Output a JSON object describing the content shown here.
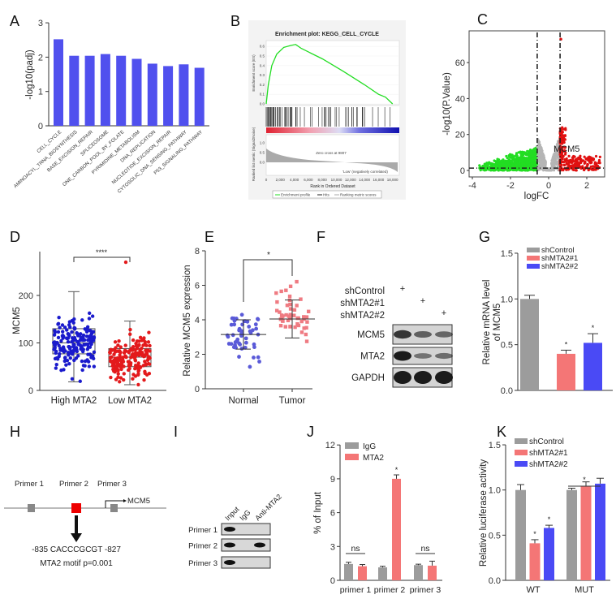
{
  "panel_labels": [
    "A",
    "B",
    "C",
    "D",
    "E",
    "F",
    "G",
    "H",
    "I",
    "J",
    "K"
  ],
  "chart_data": [
    {
      "panel": "A",
      "type": "bar",
      "ylabel": "-log10(padj)",
      "ylim": [
        0,
        3
      ],
      "yticks": [
        "0",
        "1",
        "2",
        "3"
      ],
      "categories": [
        "CELL_CYCLE",
        "AMINOACYL_TRNA_BIOSYNTHESIS",
        "BASE_EXCISION_REPAIR",
        "SPLICEOSOME",
        "ONE_CARBON_POOL_BY_FOLATE",
        "PYRIMIDINE_METABOLISM",
        "DNA_REPLICATION",
        "NUCLEOTIDE_EXCISION_REPAIR",
        "CYTOSOLIC_DNA_SENSING_PATHWAY",
        "P53_SIGNALING_PATHWAY"
      ],
      "values": [
        2.52,
        2.04,
        2.04,
        2.09,
        2.04,
        1.95,
        1.81,
        1.74,
        1.79,
        1.69
      ],
      "color": "#5050ee"
    },
    {
      "panel": "B",
      "type": "line",
      "title": "Enrichment plot: KEGG_CELL_CYCLE",
      "ylabel": "Enrichment score (ES)",
      "ylabel2": "Ranked list metric (Signal2Noise)",
      "xlabel": "Rank in Ordered Dataset",
      "yticks": [
        "0.0",
        "0.1",
        "0.2",
        "0.3",
        "0.4",
        "0.5",
        "0.6"
      ],
      "yticks2": [
        "1.0",
        "0.5",
        "0.0"
      ],
      "xticks": [
        "0",
        "2,000",
        "4,000",
        "6,000",
        "8,000",
        "10,000",
        "12,000",
        "14,000",
        "16,000",
        "18,000"
      ],
      "high_label": "'High' (positively correlated)",
      "low_label": "'Low' (negatively correlated)",
      "annotation": "Zero cross at 9807",
      "legend": [
        "Enrichment profile",
        "Hits",
        "Ranking metric scores"
      ],
      "es_curve": {
        "rank": [
          0,
          300,
          800,
          1500,
          2500,
          3500,
          4200,
          5000,
          8000,
          11000,
          14000,
          16000,
          17000,
          18000
        ],
        "es": [
          0,
          0.2,
          0.4,
          0.52,
          0.59,
          0.61,
          0.62,
          0.58,
          0.47,
          0.34,
          0.2,
          0.1,
          0.07,
          0
        ]
      },
      "curve_color": "#22dd22"
    },
    {
      "panel": "C",
      "type": "scatter",
      "xlabel": "logFC",
      "ylabel": "-log10(P.Value)",
      "xticks": [
        "-4",
        "-2",
        "0",
        "2"
      ],
      "yticks": [
        "0",
        "20",
        "40",
        "60"
      ],
      "xlim": [
        -4.2,
        2.9
      ],
      "ylim": [
        -4,
        78
      ],
      "logfc_thresholds": [
        -0.6,
        0.6
      ],
      "pvalue_threshold_line": 1.3,
      "annotation": "MCM5",
      "colors": {
        "down": "#22dd22",
        "ns": "#b5b5b5",
        "up": "#e01010"
      }
    },
    {
      "panel": "D",
      "type": "box",
      "ylabel": "MCM5",
      "yticks": [
        "0",
        "100",
        "200"
      ],
      "ylim": [
        0,
        290
      ],
      "categories": [
        "High MTA2",
        "Low MTA2"
      ],
      "boxes": [
        {
          "median": 100,
          "q1": 77,
          "q3": 130,
          "whisker_low": 18,
          "whisker_high": 208,
          "color": "#1a1acc"
        },
        {
          "median": 70,
          "q1": 50,
          "q3": 88,
          "whisker_low": 12,
          "whisker_high": 146,
          "color": "#e31a1c"
        }
      ],
      "significance": "****"
    },
    {
      "panel": "E",
      "type": "scatter",
      "ylabel": "Relative MCM5 expression",
      "yticks": [
        "0",
        "2",
        "4",
        "6",
        "8"
      ],
      "ylim": [
        0,
        8
      ],
      "categories": [
        "Normal",
        "Tumor"
      ],
      "means": [
        3.15,
        4.05
      ],
      "sd": [
        0.85,
        1.1
      ],
      "colors": [
        "#5a5ad8",
        "#ef7b82"
      ],
      "significance": "*"
    },
    {
      "panel": "G",
      "type": "bar",
      "ylabel": "Relative mRNA level",
      "ylabel2": "of MCM5",
      "yticks": [
        "0.0",
        "0.5",
        "1.0",
        "1.5"
      ],
      "ylim": [
        0,
        1.5
      ],
      "series": [
        {
          "name": "shControl",
          "value": 1.0,
          "error": 0.04,
          "color": "#9c9c9c",
          "sig": ""
        },
        {
          "name": "shMTA2#1",
          "value": 0.4,
          "error": 0.04,
          "color": "#f47676",
          "sig": "*"
        },
        {
          "name": "shMTA2#2",
          "value": 0.52,
          "error": 0.1,
          "color": "#4a4af5",
          "sig": "*"
        }
      ]
    },
    {
      "panel": "J",
      "type": "bar",
      "ylabel": "% of Input",
      "yticks": [
        "0",
        "3",
        "6",
        "9",
        "12"
      ],
      "ylim": [
        0,
        12
      ],
      "categories": [
        "primer 1",
        "primer 2",
        "primer 3"
      ],
      "series": [
        {
          "name": "IgG",
          "values": [
            1.45,
            1.15,
            1.35
          ],
          "errors": [
            0.15,
            0.1,
            0.08
          ],
          "color": "#9c9c9c"
        },
        {
          "name": "MTA2",
          "values": [
            1.25,
            9.0,
            1.3
          ],
          "errors": [
            0.15,
            0.35,
            0.4
          ],
          "color": "#f47676"
        }
      ],
      "significance": [
        "ns",
        "*",
        "ns"
      ]
    },
    {
      "panel": "K",
      "type": "bar",
      "ylabel": "Relative luciferase activity",
      "yticks": [
        "0.0",
        "0.5",
        "1.0",
        "1.5"
      ],
      "ylim": [
        0,
        1.5
      ],
      "categories": [
        "WT",
        "MUT"
      ],
      "series": [
        {
          "name": "shControl",
          "values": [
            1.0,
            1.0
          ],
          "errors": [
            0.06,
            0.02
          ],
          "color": "#9c9c9c"
        },
        {
          "name": "shMTA2#1",
          "values": [
            0.41,
            1.04
          ],
          "errors": [
            0.04,
            0.05
          ],
          "color": "#f47676"
        },
        {
          "name": "shMTA2#2",
          "values": [
            0.58,
            1.07
          ],
          "errors": [
            0.03,
            0.06
          ],
          "color": "#4a4af5"
        }
      ],
      "significance": {
        "wt": [
          "",
          "*",
          "*"
        ],
        "mut_bracket": "*"
      }
    }
  ],
  "panel_F": {
    "conditions": [
      "shControl",
      "shMTA2#1",
      "shMTA2#2"
    ],
    "plus": "+",
    "blots": [
      "MCM5",
      "MTA2",
      "GAPDH"
    ],
    "band_intensity": [
      [
        0.8,
        0.5,
        0.45
      ],
      [
        1.0,
        0.35,
        0.4
      ],
      [
        1.0,
        1.0,
        1.0
      ]
    ]
  },
  "panel_H": {
    "primers": [
      "Primer 1",
      "Primer 2",
      "Primer 3"
    ],
    "gene": "MCM5",
    "motif_sequence": "-835 CACCCGCGT -827",
    "motif_label": "MTA2 motif p=0.001",
    "motif_color": "#ee0000"
  },
  "panel_I": {
    "lanes": [
      "Input",
      "IgG",
      "Anti-MTA2"
    ],
    "rows": [
      "Primer 1",
      "Primer 2",
      "Primer 3"
    ],
    "bands": [
      [
        1,
        0,
        0
      ],
      [
        1,
        0,
        1
      ],
      [
        1,
        0,
        0
      ]
    ]
  }
}
